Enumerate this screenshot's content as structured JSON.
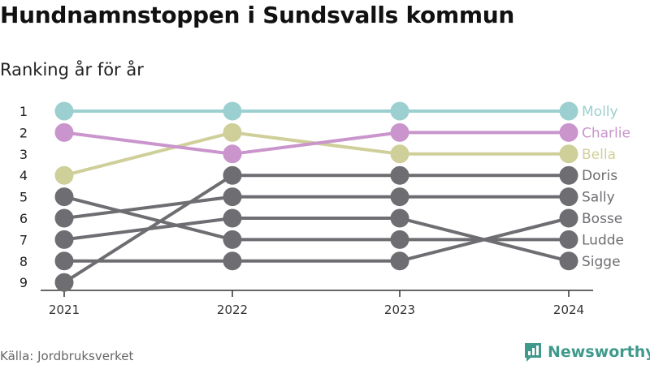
{
  "header": {
    "title": "Hundnamnstoppen i Sundsvalls kommun",
    "subtitle": "Ranking år för år"
  },
  "footer": {
    "source": "Källa: Jordbruksverket",
    "brand": "Newsworthy"
  },
  "colors": {
    "Molly": "#9ccfcf",
    "Charlie": "#c995cc",
    "Bella": "#cfcf9a",
    "other": "#6e6d72",
    "axis": "#333333",
    "brand": "#3f9a8c"
  },
  "chart_data": {
    "type": "line",
    "x": [
      "2021",
      "2022",
      "2023",
      "2024"
    ],
    "y_ticks": [
      "1",
      "2",
      "3",
      "4",
      "5",
      "6",
      "7",
      "8",
      "9"
    ],
    "y_reversed": true,
    "ylim": [
      1,
      9
    ],
    "series": [
      {
        "name": "Molly",
        "values": [
          1,
          1,
          1,
          1
        ],
        "highlight": true
      },
      {
        "name": "Charlie",
        "values": [
          2,
          3,
          2,
          2
        ],
        "highlight": true
      },
      {
        "name": "Bella",
        "values": [
          4,
          2,
          3,
          3
        ],
        "highlight": true
      },
      {
        "name": "Doris",
        "values": [
          9,
          4,
          4,
          4
        ],
        "highlight": false
      },
      {
        "name": "Sally",
        "values": [
          6,
          5,
          5,
          5
        ],
        "highlight": false
      },
      {
        "name": "Bosse",
        "values": [
          8,
          8,
          8,
          6
        ],
        "highlight": false
      },
      {
        "name": "Ludde",
        "values": [
          5,
          7,
          7,
          7
        ],
        "highlight": false
      },
      {
        "name": "Sigge",
        "values": [
          7,
          6,
          6,
          8
        ],
        "highlight": false
      }
    ]
  }
}
